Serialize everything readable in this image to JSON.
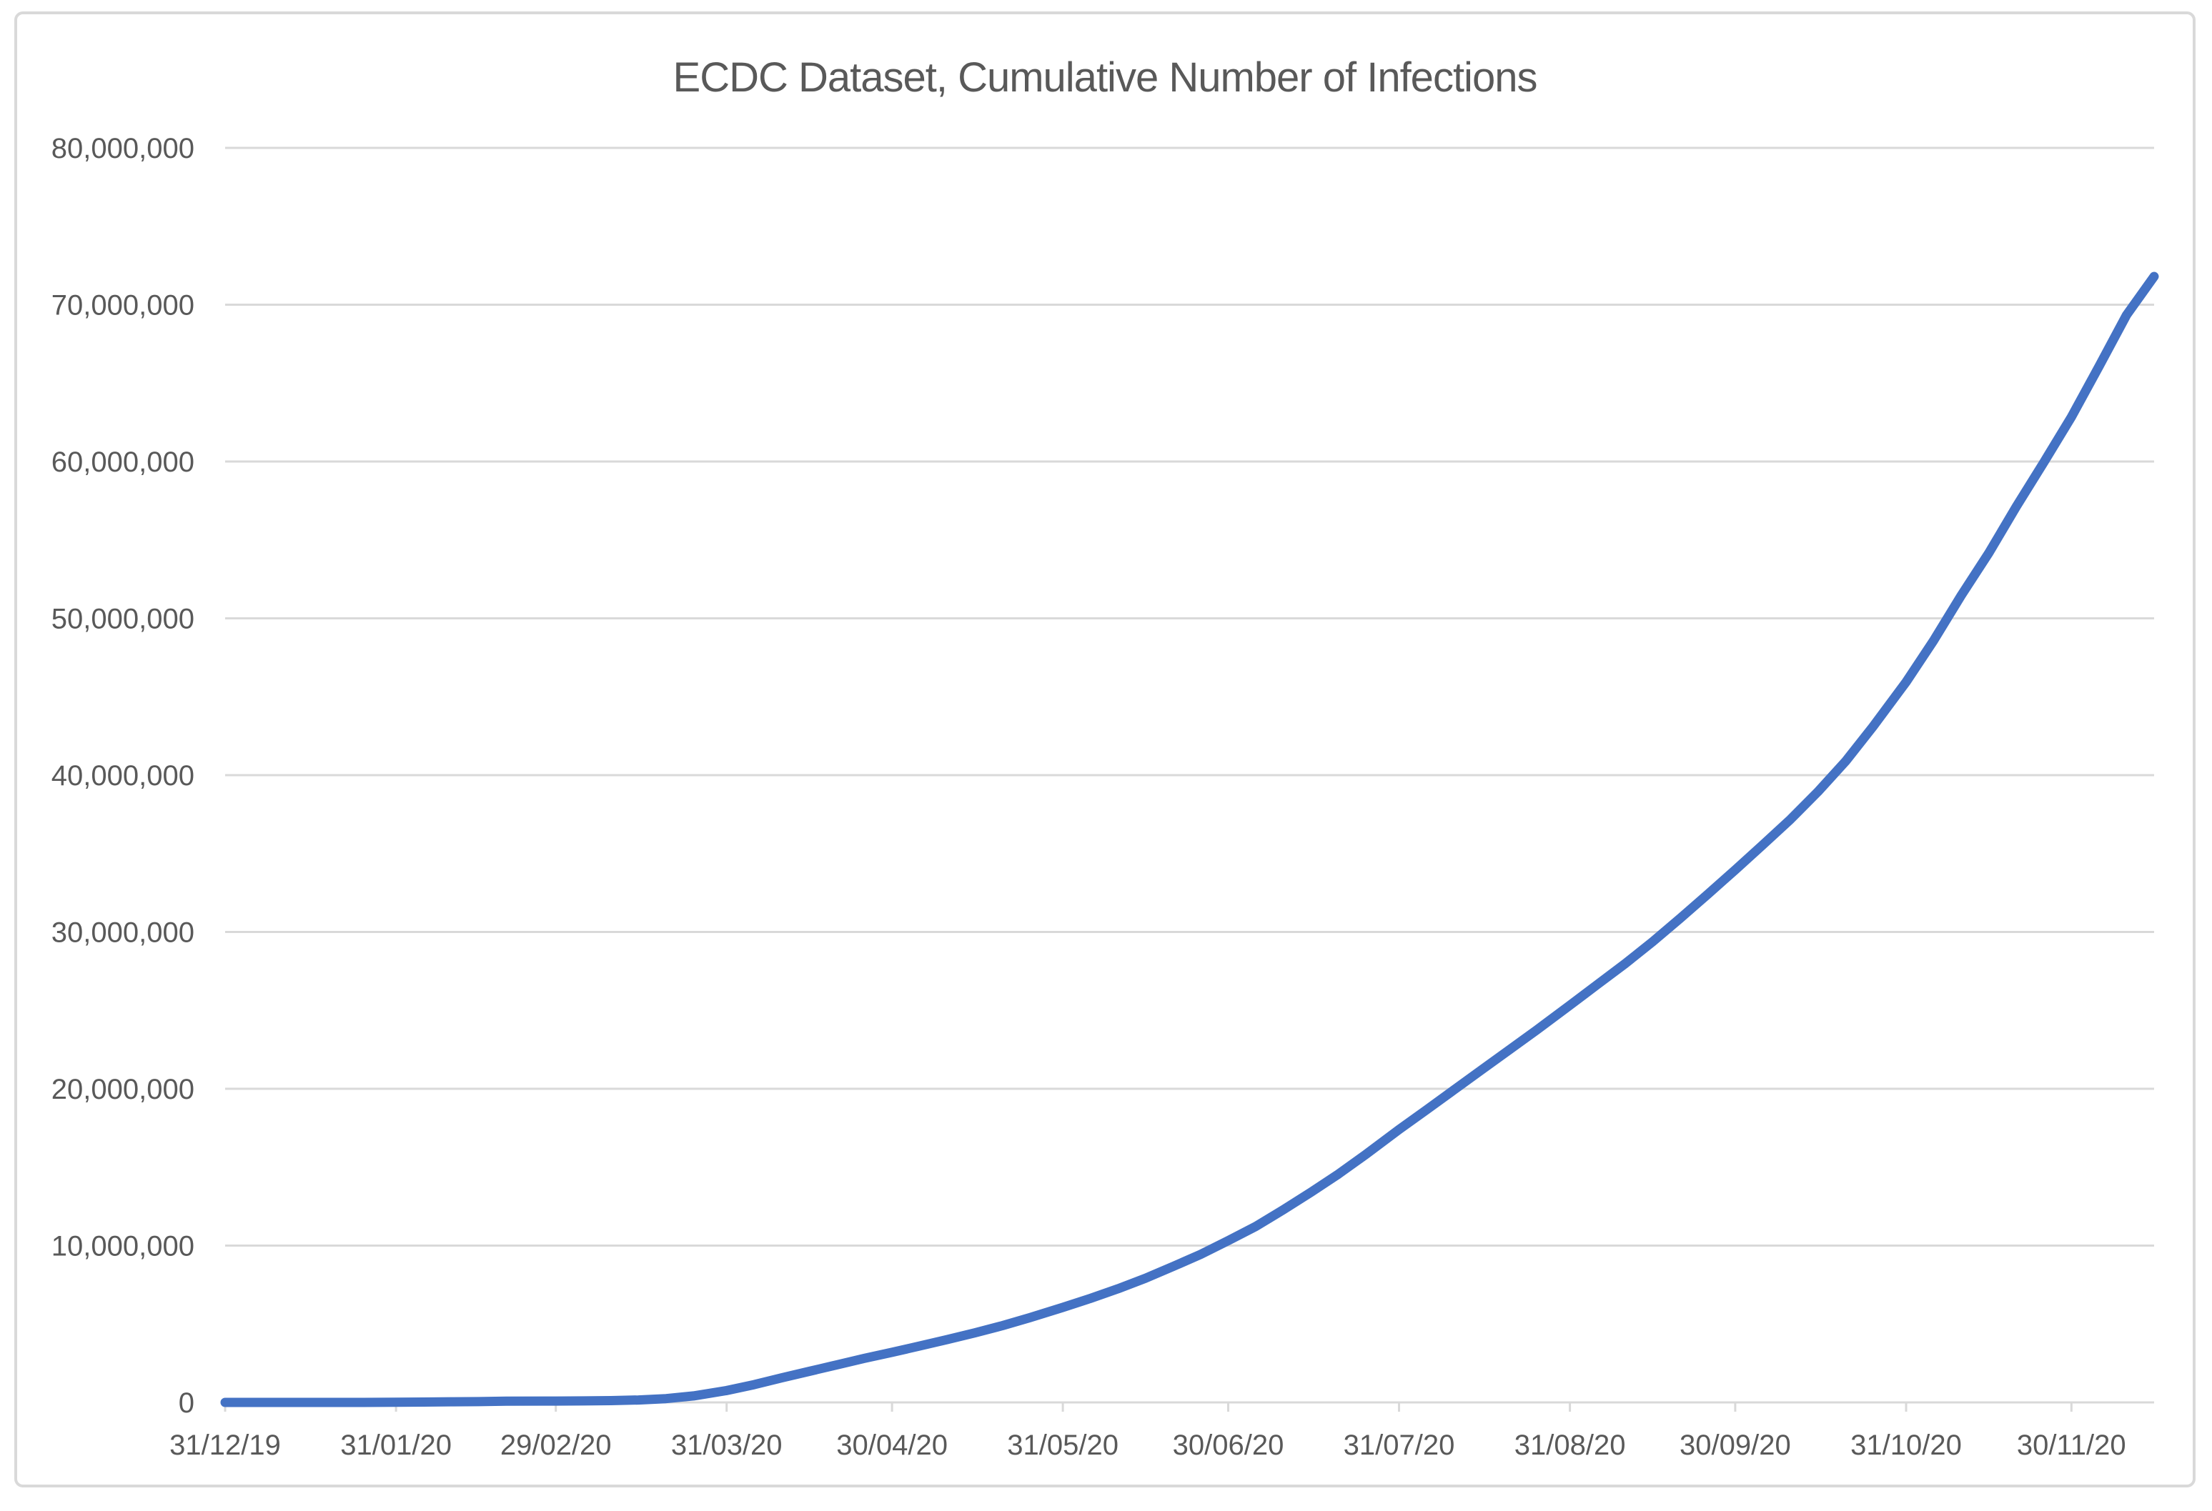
{
  "chart_data": {
    "type": "line",
    "title": "ECDC Dataset, Cumulative Number of Infections",
    "legend": "none",
    "grid": "horizontal",
    "line_color": "#4472C4",
    "grid_color": "#D9D9D9",
    "axis_line_color": "#D9D9D9",
    "border_color": "#D9D9D9",
    "background_color": "#FFFFFF",
    "text_color": "#595959",
    "title_color": "#595959",
    "xlabel": "",
    "ylabel": "",
    "ylim": [
      0,
      80000000
    ],
    "y_tick_values": [
      0,
      10000000,
      20000000,
      30000000,
      40000000,
      50000000,
      60000000,
      70000000,
      80000000
    ],
    "x_tick_labels": [
      "31/12/19",
      "31/01/20",
      "29/02/20",
      "31/03/20",
      "30/04/20",
      "31/05/20",
      "30/06/20",
      "31/07/20",
      "31/08/20",
      "30/09/20",
      "31/10/20",
      "30/11/20"
    ],
    "points": [
      [
        "31/12/19",
        27
      ],
      [
        "10/01/20",
        41
      ],
      [
        "20/01/20",
        282
      ],
      [
        "25/01/20",
        1320
      ],
      [
        "31/01/20",
        9826
      ],
      [
        "05/02/20",
        24600
      ],
      [
        "10/02/20",
        40600
      ],
      [
        "15/02/20",
        50100
      ],
      [
        "20/02/20",
        75700
      ],
      [
        "29/02/20",
        85400
      ],
      [
        "05/03/20",
        95300
      ],
      [
        "10/03/20",
        113700
      ],
      [
        "15/03/20",
        153600
      ],
      [
        "20/03/20",
        242500
      ],
      [
        "25/03/20",
        414200
      ],
      [
        "31/03/20",
        754900
      ],
      [
        "05/04/20",
        1133800
      ],
      [
        "10/04/20",
        1568300
      ],
      [
        "15/04/20",
        1982900
      ],
      [
        "20/04/20",
        2397200
      ],
      [
        "25/04/20",
        2810300
      ],
      [
        "30/04/20",
        3195800
      ],
      [
        "05/05/20",
        3595700
      ],
      [
        "10/05/20",
        4006300
      ],
      [
        "15/05/20",
        4434700
      ],
      [
        "20/05/20",
        4893200
      ],
      [
        "25/05/20",
        5404500
      ],
      [
        "31/05/20",
        6057900
      ],
      [
        "05/06/20",
        6632000
      ],
      [
        "10/06/20",
        7250400
      ],
      [
        "15/06/20",
        7917000
      ],
      [
        "20/06/20",
        8667500
      ],
      [
        "25/06/20",
        9441400
      ],
      [
        "30/06/20",
        10312200
      ],
      [
        "05/07/20",
        11220500
      ],
      [
        "10/07/20",
        12288600
      ],
      [
        "15/07/20",
        13397500
      ],
      [
        "20/07/20",
        14562600
      ],
      [
        "25/07/20",
        15824500
      ],
      [
        "31/07/20",
        17396900
      ],
      [
        "05/08/20",
        18659900
      ],
      [
        "10/08/20",
        19937600
      ],
      [
        "15/08/20",
        21212300
      ],
      [
        "20/08/20",
        22482500
      ],
      [
        "25/08/20",
        23751900
      ],
      [
        "31/08/20",
        25327100
      ],
      [
        "05/09/20",
        26651200
      ],
      [
        "10/09/20",
        27973100
      ],
      [
        "15/09/20",
        29377200
      ],
      [
        "20/09/20",
        30867400
      ],
      [
        "25/09/20",
        32402700
      ],
      [
        "30/09/20",
        33960600
      ],
      [
        "05/10/20",
        35551900
      ],
      [
        "10/10/20",
        37169100
      ],
      [
        "15/10/20",
        38942800
      ],
      [
        "20/10/20",
        40873000
      ],
      [
        "25/10/20",
        43098500
      ],
      [
        "31/10/20",
        45942000
      ],
      [
        "05/11/20",
        48584300
      ],
      [
        "10/11/20",
        51459500
      ],
      [
        "15/11/20",
        54162500
      ],
      [
        "20/11/20",
        57126700
      ],
      [
        "25/11/20",
        59954000
      ],
      [
        "30/11/20",
        62844800
      ],
      [
        "05/12/20",
        66062500
      ],
      [
        "10/12/20",
        69340900
      ],
      [
        "15/12/20",
        71800000
      ]
    ]
  }
}
